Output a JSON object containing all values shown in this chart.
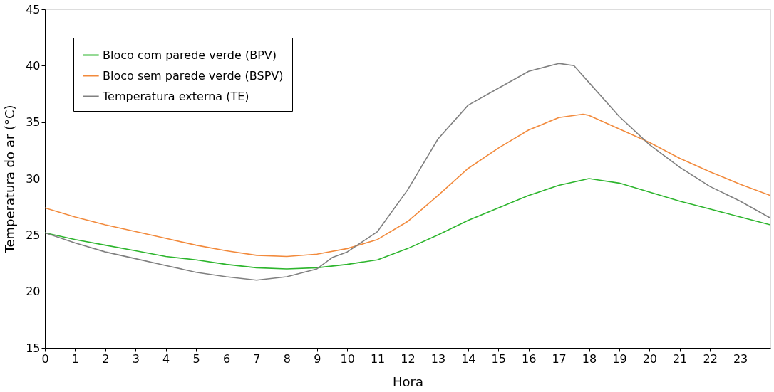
{
  "chart_data": {
    "type": "line",
    "xlabel": "Hora",
    "ylabel": "Temperatura do ar (°C)",
    "xlim": [
      0,
      24
    ],
    "xticks": [
      0,
      1,
      2,
      3,
      4,
      5,
      6,
      7,
      8,
      9,
      10,
      11,
      12,
      13,
      14,
      15,
      16,
      17,
      18,
      19,
      20,
      21,
      22,
      23
    ],
    "ylim": [
      15,
      45
    ],
    "yticks": [
      15,
      20,
      25,
      30,
      35,
      40,
      45
    ],
    "grid": false,
    "legend": "top left",
    "marker": "none",
    "line_style": "solid",
    "series": [
      {
        "name": "Bloco com parede verde (BPV)",
        "color": "#2db52d",
        "x": [
          0,
          1,
          2,
          3,
          4,
          5,
          6,
          7,
          8,
          9,
          10,
          11,
          12,
          13,
          14,
          15,
          16,
          17,
          18,
          19,
          20,
          21,
          22,
          23,
          24
        ],
        "values": [
          25.2,
          24.6,
          24.1,
          23.6,
          23.1,
          22.8,
          22.4,
          22.1,
          22.0,
          22.1,
          22.4,
          22.8,
          23.8,
          25.0,
          26.3,
          27.4,
          28.5,
          29.4,
          30.0,
          29.6,
          28.8,
          28.0,
          27.3,
          26.6,
          25.9
        ]
      },
      {
        "name": "Bloco sem parede verde (BSPV)",
        "color": "#f28a3c",
        "x": [
          0,
          1,
          2,
          3,
          4,
          5,
          6,
          7,
          8,
          9,
          10,
          11,
          12,
          13,
          14,
          15,
          16,
          17,
          17.8,
          18,
          19,
          20,
          21,
          22,
          23,
          24
        ],
        "values": [
          27.4,
          26.6,
          25.9,
          25.3,
          24.7,
          24.1,
          23.6,
          23.2,
          23.1,
          23.3,
          23.8,
          24.6,
          26.2,
          28.5,
          30.9,
          32.7,
          34.3,
          35.4,
          35.7,
          35.6,
          34.4,
          33.2,
          31.8,
          30.6,
          29.5,
          28.5
        ]
      },
      {
        "name": "Temperatura externa (TE)",
        "color": "#808080",
        "x": [
          0,
          1,
          2,
          3,
          4,
          5,
          6,
          7,
          8,
          9,
          9.5,
          10,
          11,
          12,
          13,
          14,
          15,
          16,
          17,
          17.5,
          18,
          19,
          20,
          21,
          22,
          23,
          24
        ],
        "values": [
          25.2,
          24.3,
          23.5,
          22.9,
          22.3,
          21.7,
          21.3,
          21.0,
          21.3,
          22.0,
          23.0,
          23.5,
          25.3,
          29.0,
          33.5,
          36.5,
          38.0,
          39.5,
          40.2,
          40.0,
          38.5,
          35.5,
          33.0,
          31.0,
          29.3,
          28.0,
          26.5
        ]
      }
    ]
  }
}
